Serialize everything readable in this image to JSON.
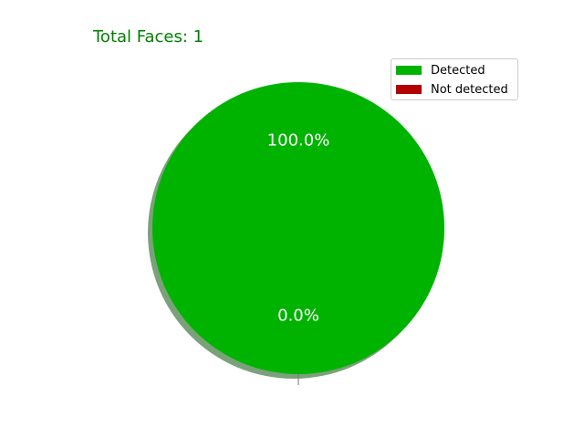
{
  "chart_data": {
    "type": "pie",
    "title": "Total Faces: 1",
    "categories": [
      "Detected",
      "Not detected"
    ],
    "values": [
      1,
      0
    ],
    "percent_labels": [
      "100.0%",
      "0.0%"
    ],
    "colors": [
      "#00b300",
      "#b30000"
    ],
    "label_color": "#ffffff",
    "title_color": "#008000",
    "shadow": true,
    "start_angle": "top",
    "legend": {
      "placement": "top-right",
      "entries": [
        "Detected",
        "Not detected"
      ]
    }
  }
}
